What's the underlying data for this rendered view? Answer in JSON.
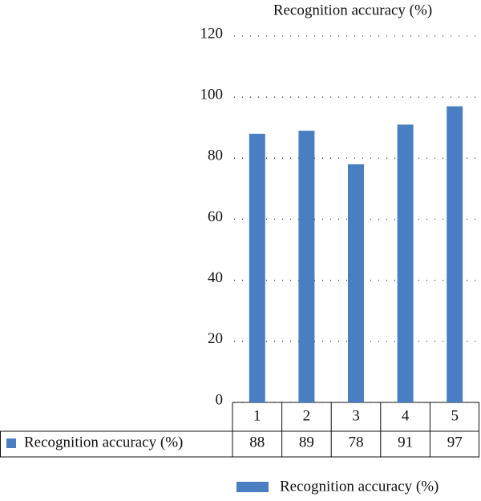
{
  "chart_data": {
    "type": "bar",
    "title": "Recognition accuracy (%)",
    "categories": [
      "1",
      "2",
      "3",
      "4",
      "5"
    ],
    "series": [
      {
        "name": "Recognition accuracy (%)",
        "color": "#4a7ec2",
        "values": [
          88,
          89,
          78,
          91,
          97
        ]
      }
    ],
    "ylim": [
      0,
      120
    ],
    "yticks": [
      0,
      20,
      40,
      60,
      80,
      100,
      120
    ],
    "grid": true,
    "legend": "bottom"
  }
}
